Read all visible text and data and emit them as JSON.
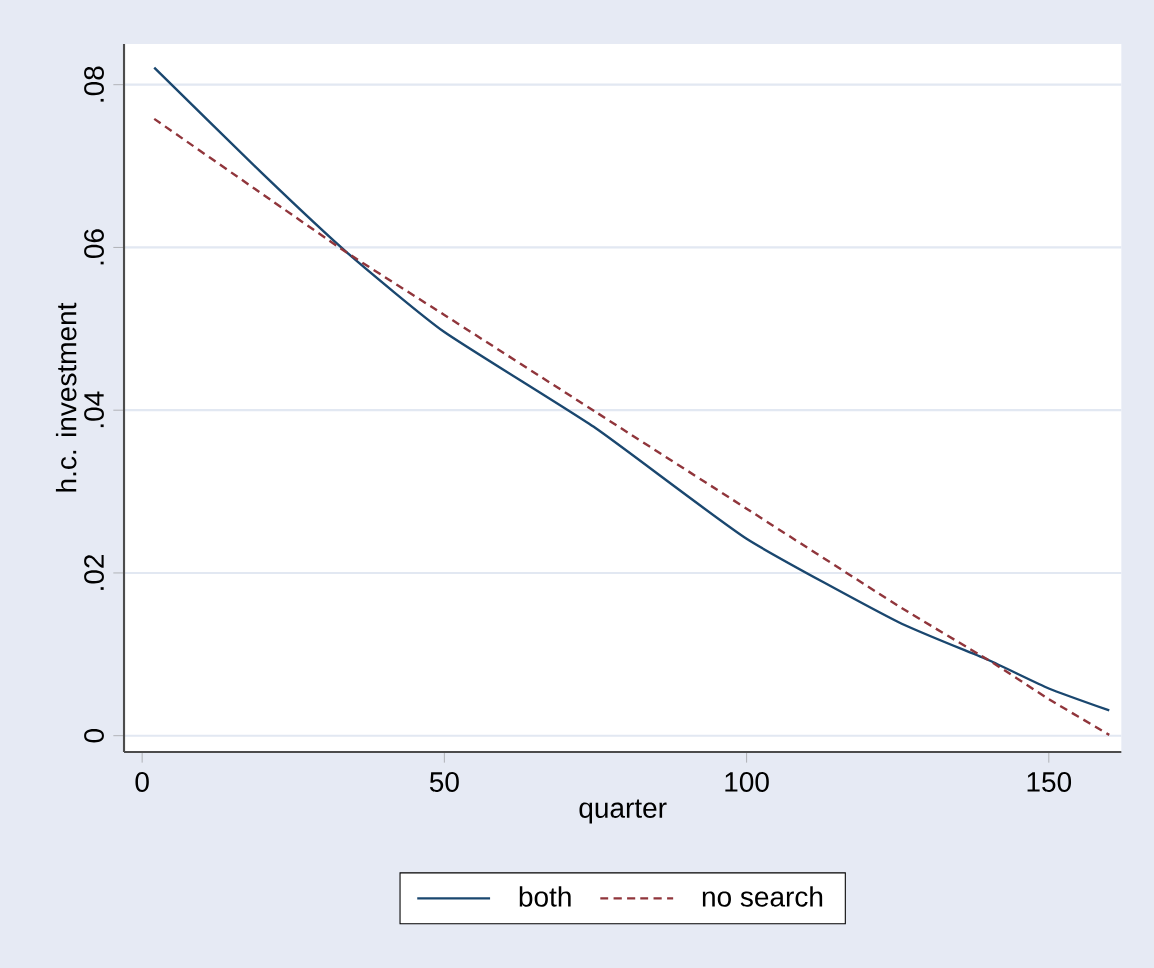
{
  "chart_data": {
    "type": "line",
    "xlabel": "quarter",
    "ylabel": "h.c. investment",
    "xlim": [
      -3,
      162
    ],
    "ylim": [
      -0.002,
      0.085
    ],
    "xticks": [
      0,
      50,
      100,
      150
    ],
    "yticks": [
      0,
      {
        "value": 0.02,
        "label": ".02"
      },
      {
        "value": 0.04,
        "label": ".04"
      },
      {
        "value": 0.06,
        "label": ".06"
      },
      {
        "value": 0.08,
        "label": ".08"
      }
    ],
    "grid": "y",
    "legend": "bottom",
    "marker": "none",
    "series": [
      {
        "name": "both",
        "color": "#1a476f",
        "line_style": "solid",
        "x": [
          2,
          20,
          34,
          50,
          75,
          100,
          125,
          140,
          150,
          160
        ],
        "values": [
          0.0821,
          0.069,
          0.0593,
          0.0496,
          0.0378,
          0.0242,
          0.014,
          0.0093,
          0.0058,
          0.0031
        ]
      },
      {
        "name": "no search",
        "color": "#90353b",
        "line_style": "dashed",
        "x": [
          2,
          20,
          34,
          50,
          75,
          100,
          125,
          140,
          150,
          160
        ],
        "values": [
          0.0758,
          0.0665,
          0.0593,
          0.0517,
          0.0398,
          0.0279,
          0.016,
          0.0093,
          0.0045,
          0.0001
        ]
      }
    ]
  }
}
